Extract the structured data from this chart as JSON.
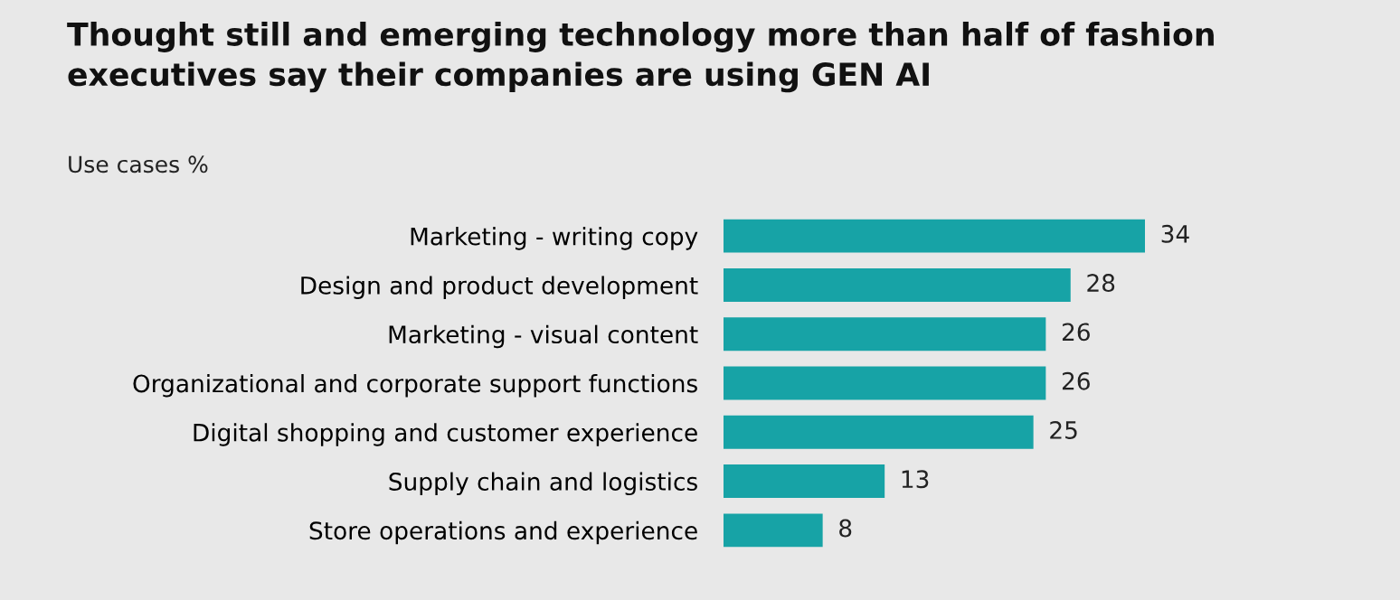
{
  "chart_data": {
    "type": "bar",
    "orientation": "horizontal",
    "title": "Thought still and emerging technology more than half of fashion\nexecutives say their companies are using GEN AI",
    "subtitle": "Use cases %",
    "categories": [
      "Marketing - writing copy",
      "Design and product development",
      "Marketing - visual content",
      "Organizational and corporate support functions",
      "Digital shopping and customer experience",
      "Supply chain and logistics",
      "Store operations and experience"
    ],
    "values": [
      34,
      28,
      26,
      26,
      25,
      13,
      8
    ],
    "color": "#17a3a6",
    "data_labels": true
  }
}
